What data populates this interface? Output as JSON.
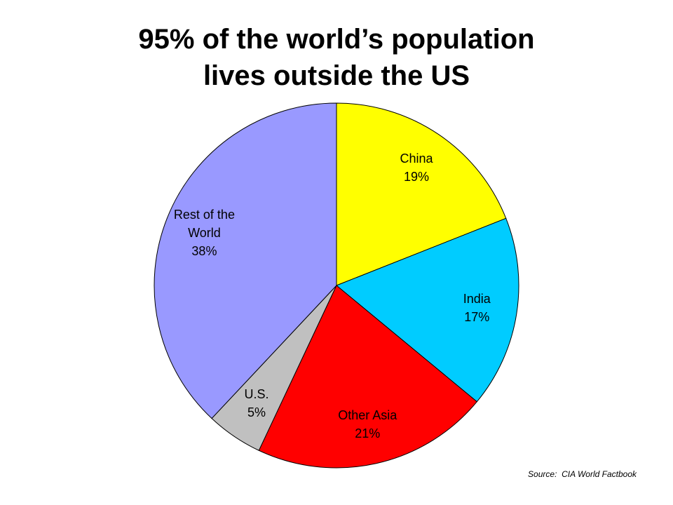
{
  "chart_data": {
    "type": "pie",
    "title": "95% of the world’s population lives outside the US",
    "categories": [
      "China",
      "India",
      "Other Asia",
      "U.S.",
      "Rest of the World"
    ],
    "values": [
      19,
      17,
      21,
      5,
      38
    ],
    "value_labels": [
      "19%",
      "17%",
      "21%",
      "5%",
      "38%"
    ],
    "colors": [
      "#ffff00",
      "#00ccff",
      "#ff0000",
      "#c0c0c0",
      "#9999ff"
    ],
    "source": "Source:  CIA World Factbook"
  }
}
